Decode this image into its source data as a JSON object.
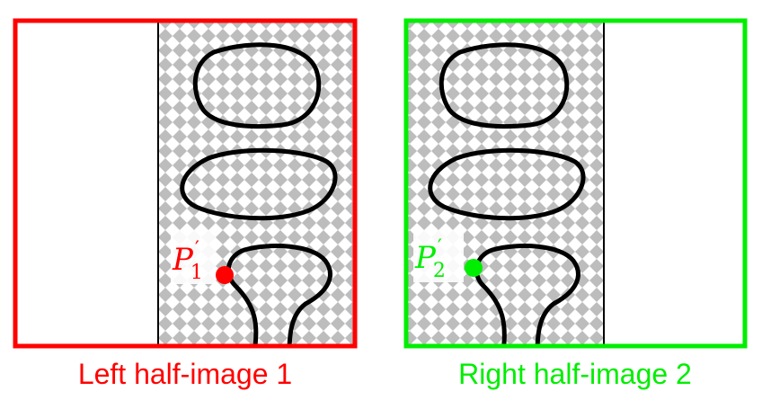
{
  "panels": [
    {
      "caption": "Left half-image 1",
      "color": "#ff0000",
      "point_label": {
        "base": "P",
        "prime": "′",
        "sub": "1"
      }
    },
    {
      "caption": "Right half-image 2",
      "color": "#00ee00",
      "point_label": {
        "base": "P",
        "prime": "′",
        "sub": "2"
      }
    }
  ],
  "colors": {
    "checker_light": "#ffffff",
    "checker_dark": "#bdbdbd",
    "outline": "#000000"
  }
}
